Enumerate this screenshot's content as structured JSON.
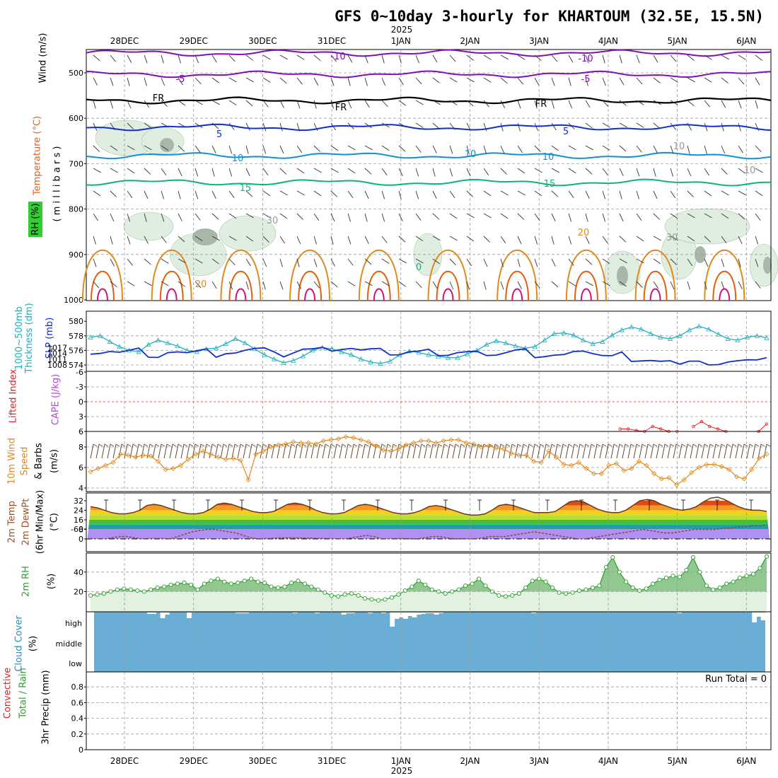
{
  "title": "GFS 0~10day 3-hourly for KHARTOUM (32.5E, 15.5N)",
  "year_label": "2025",
  "run_total": "Run Total = 0",
  "date_labels": [
    "28DEC",
    "29DEC",
    "30DEC",
    "31DEC",
    "1JAN",
    "2JAN",
    "3JAN",
    "4JAN",
    "5JAN",
    "6JAN"
  ],
  "colors": {
    "blue_line": "#1030c8",
    "cyan_line": "#20b0c0",
    "orange": "#e08a1e",
    "brown": "#6b4a2a",
    "green_rh": "#2e9e2e",
    "cloud_fill": "#6aaed6",
    "purple_contour": "#8010b0",
    "magenta": "#d0107a",
    "teal_contour": "#10b080",
    "lightblue_contour": "#1090d8",
    "red_label": "#e02020"
  },
  "panels": {
    "upper_air": {
      "ylabels": [
        {
          "text": "Wind (m/s)",
          "color": "#000000"
        },
        {
          "text": "Temperature (°C)",
          "color": "#e06020"
        },
        {
          "text": "RH (%)",
          "color": "#000000"
        },
        {
          "text": "( m i l l i b a r s )",
          "color": "#000000"
        }
      ],
      "yticks": [
        "500",
        "600",
        "700",
        "800",
        "900",
        "1000"
      ],
      "contour_labels": [
        "-10",
        "-10",
        "-5",
        "-5",
        "FR",
        "FR",
        "FR",
        "5",
        "5",
        "10",
        "10",
        "10",
        "15",
        "15",
        "20",
        "20",
        "0",
        "10",
        "30",
        "30",
        "10"
      ]
    },
    "slp": {
      "ylabels": [
        {
          "text": "1000~500mb",
          "color": "#20b0c0"
        },
        {
          "text": "Thickness (dm)",
          "color": "#20b0c0"
        },
        {
          "text": "SLP (mb)",
          "color": "#1030c8"
        }
      ],
      "yticks_left": [
        "574",
        "576",
        "578",
        "580"
      ],
      "yticks_right": [
        "1008",
        "1011",
        "1014",
        "1017"
      ]
    },
    "cape": {
      "ylabels": [
        {
          "text": "Lifted Index",
          "color": "#e02020"
        },
        {
          "text": "CAPE (J/kg)",
          "color": "#c040e0"
        }
      ],
      "yticks": [
        "-6",
        "-3",
        "0",
        "3",
        "6"
      ]
    },
    "wind10m": {
      "ylabels": [
        {
          "text": "10m Wind",
          "color": "#e08a1e"
        },
        {
          "text": "Speed",
          "color": "#e08a1e"
        },
        {
          "text": "& Barbs",
          "color": "#000000"
        },
        {
          "text": "(m/s)",
          "color": "#000000"
        }
      ],
      "yticks": [
        "4",
        "6",
        "8"
      ]
    },
    "temp2m": {
      "ylabels": [
        {
          "text": "2m Temp",
          "color": "#a05020"
        },
        {
          "text": "2m DewPt",
          "color": "#a05020"
        },
        {
          "text": "(6hr Min/Max)",
          "color": "#000000"
        },
        {
          "text": "(°C)",
          "color": "#000000"
        }
      ],
      "yticks": [
        "-60",
        "0",
        "8",
        "16",
        "24",
        "32"
      ]
    },
    "rh2m": {
      "ylabels": [
        {
          "text": "2m RH",
          "color": "#2e9e2e"
        },
        {
          "text": "(%)",
          "color": "#000000"
        }
      ],
      "yticks": [
        "20",
        "40"
      ]
    },
    "cloud": {
      "ylabels": [
        {
          "text": "Cloud Cover",
          "color": "#2090c0"
        },
        {
          "text": "(%)",
          "color": "#000000"
        }
      ],
      "levels": [
        "high",
        "middle",
        "low"
      ]
    },
    "precip": {
      "ylabels": [
        {
          "text": "Total / Rain",
          "color": "#2e9e2e"
        },
        {
          "text": "Convective",
          "color": "#e02020"
        },
        {
          "text": "3hr Precip (mm)",
          "color": "#000000"
        }
      ],
      "yticks": [
        "0",
        "0.2",
        "0.4",
        "0.6",
        "0.8"
      ]
    }
  },
  "chart_data": [
    {
      "type": "line",
      "panel": "slp",
      "series": [
        {
          "name": "1000~500mb Thickness (dm)",
          "values": [
            577.8,
            578.0,
            577.2,
            576.5,
            576.0,
            575.8,
            576.8,
            577.4,
            577.0,
            576.6,
            576.0,
            575.8,
            576.2,
            576.3,
            576.9,
            577.6,
            577.0,
            576.2,
            575.4,
            574.8,
            574.3,
            574.6,
            575.2,
            576.0,
            576.4,
            576.2,
            575.8,
            575.4,
            574.8,
            574.4,
            574.2,
            574.5,
            575.4,
            575.9,
            575.7,
            575.4,
            575.2,
            575.0,
            575.0,
            575.5,
            576.0,
            576.8,
            577.3,
            577.0,
            576.6,
            576.3,
            576.5,
            577.4,
            578.3,
            578.4,
            578.1,
            577.4,
            576.9,
            577.2,
            578.1,
            578.8,
            579.2,
            578.9,
            578.3,
            577.8,
            577.6,
            578.0,
            578.8,
            579.3,
            578.9,
            578.2,
            577.6,
            577.4,
            577.8,
            578.0,
            577.7
          ]
        },
        {
          "name": "SLP (mb)",
          "values": [
            1013.6,
            1014.0,
            1015.0,
            1014.6,
            1015.6,
            1016.8,
            1012.0,
            1011.9,
            1014.4,
            1014.8,
            1014.4,
            1015.4,
            1016.4,
            1012.0,
            1013.8,
            1014.2,
            1015.6,
            1016.6,
            1016.9,
            1014.8,
            1012.2,
            1014.2,
            1016.2,
            1016.4,
            1017.2,
            1015.2,
            1016.0,
            1016.6,
            1015.8,
            1016.4,
            1016.6,
            1013.2,
            1013.3,
            1014.8,
            1015.2,
            1016.2,
            1012.8,
            1013.0,
            1014.4,
            1014.9,
            1015.1,
            1012.9,
            1013.1,
            1014.4,
            1015.8,
            1016.4,
            1011.8,
            1012.3,
            1013.1,
            1013.4,
            1015.0,
            1015.2,
            1013.9,
            1012.9,
            1012.8,
            1014.8,
            1009.8,
            1010.1,
            1010.3,
            1009.9,
            1010.2,
            1008.4,
            1010.0,
            1010.0,
            1008.0,
            1008.2,
            1009.5,
            1010.2,
            1010.7,
            1010.6,
            1011.8
          ]
        }
      ]
    },
    {
      "type": "line",
      "panel": "cape",
      "series": [
        {
          "name": "Lifted Index",
          "values": [
            null,
            null,
            null,
            null,
            null,
            null,
            null,
            null,
            null,
            null,
            null,
            null,
            null,
            null,
            null,
            null,
            null,
            null,
            null,
            null,
            null,
            null,
            null,
            null,
            null,
            null,
            null,
            null,
            null,
            null,
            null,
            null,
            null,
            null,
            null,
            null,
            null,
            null,
            null,
            null,
            null,
            null,
            null,
            null,
            null,
            null,
            null,
            null,
            null,
            null,
            null,
            null,
            null,
            null,
            null,
            null,
            null,
            null,
            null,
            null,
            null,
            null,
            null,
            null,
            null,
            5.5,
            5.5,
            5.8,
            6,
            5,
            5.5,
            6,
            6,
            null,
            5,
            4,
            5,
            5.5,
            6,
            null,
            null,
            null,
            6,
            4.5
          ]
        }
      ]
    },
    {
      "type": "line",
      "panel": "wind10m",
      "series": [
        {
          "name": "10m Wind Speed (m/s)",
          "values": [
            5.6,
            5.9,
            6.2,
            6.5,
            7.3,
            7.2,
            7.0,
            7.2,
            7.1,
            6.6,
            5.8,
            5.9,
            6.2,
            6.8,
            7.3,
            7.6,
            7.3,
            7.0,
            6.8,
            6.9,
            6.7,
            4.8,
            7.3,
            7.6,
            8.0,
            8.2,
            8.3,
            8.5,
            8.4,
            8.4,
            8.3,
            8.6,
            8.7,
            8.8,
            9.0,
            8.9,
            8.7,
            8.5,
            8.1,
            7.7,
            7.6,
            7.8,
            8.2,
            8.4,
            8.6,
            8.6,
            8.4,
            8.6,
            8.7,
            8.7,
            8.4,
            8.3,
            8.0,
            8.1,
            7.9,
            7.8,
            7.4,
            7.2,
            7.2,
            6.6,
            6.5,
            7.6,
            7.0,
            6.3,
            6.2,
            6.5,
            5.9,
            5.4,
            5.4,
            6.2,
            6.4,
            5.7,
            5.9,
            6.6,
            6.2,
            5.4,
            4.9,
            5.0,
            4.3,
            4.8,
            5.5,
            6.0,
            6.3,
            6.3,
            6.1,
            5.8,
            5.1,
            4.9,
            5.8,
            6.9,
            7.3
          ]
        }
      ]
    },
    {
      "type": "line",
      "panel": "temp2m",
      "series": [
        {
          "name": "2m Temp (°C)",
          "values": [
            27,
            26,
            24,
            22,
            21,
            21,
            22,
            24,
            28,
            29,
            28,
            26,
            24,
            22,
            21,
            21,
            22,
            25,
            29,
            30,
            29,
            27,
            25,
            23,
            22,
            22,
            23,
            26,
            29,
            30,
            29,
            27,
            24,
            22,
            21,
            21,
            22,
            25,
            28,
            29,
            28,
            26,
            24,
            22,
            21,
            21,
            22,
            24,
            27,
            28,
            27,
            25,
            23,
            21,
            20,
            20,
            21,
            24,
            28,
            29,
            28,
            26,
            24,
            22,
            22,
            22,
            23,
            27,
            31,
            32,
            31,
            28,
            25,
            23,
            22,
            22,
            24,
            28,
            32,
            33,
            32,
            29,
            27,
            25,
            24,
            25,
            27,
            31,
            34,
            35,
            33,
            30,
            27,
            25,
            24,
            24,
            23
          ]
        },
        {
          "name": "2m DewPt (°C)",
          "values": [
            -2,
            -1,
            0,
            1,
            2,
            2,
            1,
            0,
            -2,
            -3,
            -2,
            0,
            2,
            4,
            6,
            7,
            8,
            8,
            7,
            6,
            5,
            3,
            1,
            0,
            -2,
            -4,
            -6,
            -7,
            -7,
            -6,
            -5,
            -4,
            -3,
            -2,
            -1,
            0,
            1,
            2,
            3,
            2,
            0,
            -1,
            -2,
            -2,
            -1,
            0,
            1,
            2,
            2,
            1,
            0,
            -1,
            -1,
            0,
            1,
            2,
            2,
            2,
            3,
            4,
            5,
            6,
            5,
            4,
            3,
            2,
            1,
            0,
            0,
            1,
            2,
            3,
            4,
            5,
            6,
            7,
            8,
            7,
            6,
            5,
            5,
            6,
            7,
            8,
            8,
            8,
            8,
            9,
            9,
            10,
            10,
            11,
            11,
            12
          ]
        }
      ]
    },
    {
      "type": "area",
      "panel": "rh2m",
      "series": [
        {
          "name": "2m RH (%)",
          "values": [
            16,
            17,
            18,
            20,
            22,
            23,
            22,
            21,
            20,
            22,
            24,
            25,
            27,
            28,
            29,
            27,
            22,
            28,
            31,
            33,
            30,
            28,
            29,
            31,
            33,
            30,
            29,
            25,
            24,
            25,
            29,
            31,
            28,
            25,
            22,
            19,
            16,
            15,
            17,
            18,
            16,
            13,
            12,
            11,
            12,
            14,
            17,
            21,
            25,
            31,
            27,
            22,
            20,
            18,
            20,
            22,
            26,
            28,
            33,
            26,
            20,
            16,
            15,
            16,
            18,
            24,
            31,
            33,
            30,
            24,
            19,
            18,
            19,
            21,
            22,
            24,
            26,
            45,
            55,
            40,
            30,
            24,
            21,
            23,
            28,
            32,
            34,
            36,
            35,
            42,
            55,
            40,
            26,
            22,
            24,
            28,
            30,
            34,
            36,
            38,
            44,
            56
          ]
        }
      ]
    },
    {
      "type": "bar",
      "panel": "cloud",
      "series": [
        {
          "name": "High Cloud Cover (%)",
          "values": [
            0,
            0,
            0,
            0,
            0,
            0,
            0,
            0,
            0,
            0,
            0,
            0,
            2,
            2,
            0,
            8,
            3,
            0,
            0,
            0,
            0,
            8,
            0,
            0,
            0,
            0,
            0,
            0,
            0,
            0,
            0,
            0,
            1,
            1,
            1,
            0,
            0,
            0,
            0,
            0,
            0,
            0,
            0,
            0,
            0,
            1,
            0,
            0,
            0,
            0,
            1,
            0,
            0,
            0,
            0,
            0,
            3,
            1,
            1,
            0,
            0,
            0,
            1,
            0,
            0,
            1,
            0,
            20,
            9,
            7,
            9,
            5,
            7,
            3,
            2,
            1,
            1,
            3,
            1,
            0,
            0,
            0,
            0,
            0,
            0,
            0,
            0,
            0,
            0,
            0,
            0,
            0,
            0,
            0,
            0,
            0,
            0,
            0,
            0,
            1,
            0,
            0,
            0,
            0,
            0,
            0,
            0,
            0,
            0,
            0,
            0,
            0,
            0,
            0,
            0,
            0,
            0,
            0,
            0,
            0,
            0,
            0,
            0,
            0,
            0,
            0,
            0,
            0,
            0,
            0,
            0,
            0,
            1,
            0,
            0,
            0,
            0,
            0,
            0,
            0,
            0,
            0,
            0,
            0,
            0,
            0,
            0,
            0,
            0,
            14,
            6,
            11
          ]
        }
      ]
    },
    {
      "type": "bar",
      "panel": "precip",
      "series": [
        {
          "name": "3hr Precip (mm)",
          "values": []
        }
      ]
    }
  ]
}
